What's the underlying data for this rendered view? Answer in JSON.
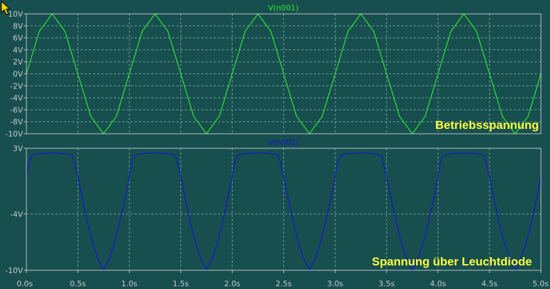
{
  "colors": {
    "background": "#174f4f",
    "frame": "#c0c0c0",
    "grid": "#7f9f9f",
    "tick_text": "#c8c8c8",
    "series1": "#2ee82e",
    "series2": "#1414d2",
    "annotation": "#ffff3c",
    "cursor_icon": "#ffd800"
  },
  "icons": {
    "cursor": "mouse-pointer-icon"
  },
  "chart_data": [
    {
      "type": "line",
      "title": "V(n001)",
      "annotation": "Betriebsspannung",
      "ylim": [
        -10,
        10
      ],
      "yticks": [
        10,
        8,
        6,
        4,
        2,
        0,
        -2,
        -4,
        -6,
        -8,
        -10
      ],
      "ytick_labels": [
        "10V",
        "8V",
        "6V",
        "4V",
        "2V",
        "0V",
        "-2V",
        "-4V",
        "-6V",
        "-8V",
        "-10V"
      ],
      "xlim": [
        0,
        5
      ],
      "grid": true,
      "series": [
        {
          "name": "V(n001)",
          "x": [
            0,
            0.125,
            0.25,
            0.375,
            0.5,
            0.625,
            0.75,
            0.875,
            1.0,
            1.125,
            1.25,
            1.375,
            1.5,
            1.625,
            1.75,
            1.875,
            2.0,
            2.125,
            2.25,
            2.375,
            2.5,
            2.625,
            2.75,
            2.875,
            3.0,
            3.125,
            3.25,
            3.375,
            3.5,
            3.625,
            3.75,
            3.875,
            4.0,
            4.125,
            4.25,
            4.375,
            4.5,
            4.625,
            4.75,
            4.875,
            5.0
          ],
          "y": [
            0,
            7.07,
            10,
            7.07,
            0,
            -7.07,
            -10,
            -7.07,
            0,
            7.07,
            10,
            7.07,
            0,
            -7.07,
            -10,
            -7.07,
            0,
            7.07,
            10,
            7.07,
            0,
            -7.07,
            -10,
            -7.07,
            0,
            7.07,
            10,
            7.07,
            0,
            -7.07,
            -10,
            -7.07,
            0,
            7.07,
            10,
            7.07,
            0,
            -7.07,
            -10,
            -7.07,
            0
          ]
        }
      ]
    },
    {
      "type": "line",
      "title": "V(n002)",
      "annotation": "Spannung über Leuchtdiode",
      "ylim": [
        -10,
        3
      ],
      "yticks": [
        3,
        -4,
        -10
      ],
      "ytick_labels": [
        "3V",
        "-4V",
        "-10V"
      ],
      "xlim": [
        0,
        5
      ],
      "xticks": [
        0,
        0.5,
        1.0,
        1.5,
        2.0,
        2.5,
        3.0,
        3.5,
        4.0,
        4.5,
        5.0
      ],
      "xtick_labels": [
        "0.0s",
        "0.5s",
        "1.0s",
        "1.5s",
        "2.0s",
        "2.5s",
        "3.0s",
        "3.5s",
        "4.0s",
        "4.5s",
        "5.0s"
      ],
      "grid": true,
      "series": [
        {
          "name": "V(n002)",
          "x": [
            0,
            0.02,
            0.05,
            0.1,
            0.2,
            0.3,
            0.4,
            0.45,
            0.5,
            0.55,
            0.6,
            0.65,
            0.7,
            0.75,
            0.8,
            0.85,
            0.9,
            0.95,
            1.0,
            1.02,
            1.05,
            1.1,
            1.2,
            1.3,
            1.4,
            1.45,
            1.5,
            1.55,
            1.6,
            1.65,
            1.7,
            1.75,
            1.8,
            1.85,
            1.9,
            1.95,
            2.0,
            2.02,
            2.05,
            2.1,
            2.2,
            2.3,
            2.4,
            2.45,
            2.5,
            2.55,
            2.6,
            2.65,
            2.7,
            2.75,
            2.8,
            2.85,
            2.9,
            2.95,
            3.0,
            3.02,
            3.05,
            3.1,
            3.2,
            3.3,
            3.4,
            3.45,
            3.5,
            3.55,
            3.6,
            3.65,
            3.7,
            3.75,
            3.8,
            3.85,
            3.9,
            3.95,
            4.0,
            4.02,
            4.05,
            4.1,
            4.2,
            4.3,
            4.4,
            4.45,
            4.5,
            4.55,
            4.6,
            4.65,
            4.7,
            4.75,
            4.8,
            4.85,
            4.9,
            4.95,
            5.0
          ],
          "y": [
            0,
            1.4,
            2.2,
            2.4,
            2.5,
            2.5,
            2.4,
            2.2,
            0,
            -2.7,
            -5.2,
            -7.3,
            -8.9,
            -10,
            -8.9,
            -7.3,
            -5.2,
            -2.7,
            0,
            1.4,
            2.2,
            2.4,
            2.5,
            2.5,
            2.4,
            2.2,
            0,
            -2.7,
            -5.2,
            -7.3,
            -8.9,
            -10,
            -8.9,
            -7.3,
            -5.2,
            -2.7,
            0,
            1.4,
            2.2,
            2.4,
            2.5,
            2.5,
            2.4,
            2.2,
            0,
            -2.7,
            -5.2,
            -7.3,
            -8.9,
            -10,
            -8.9,
            -7.3,
            -5.2,
            -2.7,
            0,
            1.4,
            2.2,
            2.4,
            2.5,
            2.5,
            2.4,
            2.2,
            0,
            -2.7,
            -5.2,
            -7.3,
            -8.9,
            -10,
            -8.9,
            -7.3,
            -5.2,
            -2.7,
            0,
            1.4,
            2.2,
            2.4,
            2.5,
            2.5,
            2.4,
            2.2,
            0,
            -2.7,
            -5.2,
            -7.3,
            -8.9,
            -10,
            -8.9,
            -7.3,
            -5.2,
            -2.7,
            0
          ]
        }
      ]
    }
  ]
}
